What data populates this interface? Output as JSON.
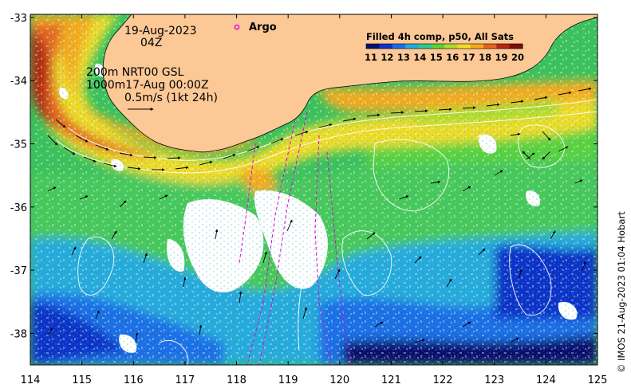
{
  "map": {
    "date": "19-Aug-2023",
    "time": "04Z",
    "contour_info_line1": "200m  NRT00 GSL",
    "contour_info_line2": "1000m17-Aug 00:00Z",
    "velocity_scale": "0.5m/s (1kt 24h)",
    "argo_label": "Argo",
    "colorbar_title": "Filled 4h comp, p50, All Sats",
    "colorbar_ticks": [
      "11",
      "12",
      "13",
      "14",
      "15",
      "16",
      "17",
      "18",
      "19",
      "20"
    ],
    "colorbar_colors": [
      "#08106e",
      "#1030c8",
      "#1c6ee6",
      "#25aadc",
      "#2ec896",
      "#5ad23c",
      "#aadc2d",
      "#f0dc28",
      "#f5aa1e",
      "#e6641e",
      "#b4280f",
      "#781005"
    ],
    "credit": "© IMOS 21-Aug-2023 01:04 Hobart",
    "land_color": "#fcc896",
    "lat_ticks": [
      {
        "value": -33,
        "label": "-33"
      },
      {
        "value": -34,
        "label": "-34"
      },
      {
        "value": -35,
        "label": "-35"
      },
      {
        "value": -36,
        "label": "-36"
      },
      {
        "value": -37,
        "label": "-37"
      },
      {
        "value": -38,
        "label": "-38"
      }
    ],
    "lon_ticks": [
      {
        "value": 114,
        "label": "114"
      },
      {
        "value": 115,
        "label": "115"
      },
      {
        "value": 116,
        "label": "116"
      },
      {
        "value": 117,
        "label": "117"
      },
      {
        "value": 118,
        "label": "118"
      },
      {
        "value": 119,
        "label": "119"
      },
      {
        "value": 120,
        "label": "120"
      },
      {
        "value": 121,
        "label": "121"
      },
      {
        "value": 122,
        "label": "122"
      },
      {
        "value": 123,
        "label": "123"
      },
      {
        "value": 124,
        "label": "124"
      },
      {
        "value": 125,
        "label": "125"
      }
    ],
    "lon_range": [
      114,
      125
    ],
    "lat_range": [
      -38.5,
      -32.95
    ]
  }
}
